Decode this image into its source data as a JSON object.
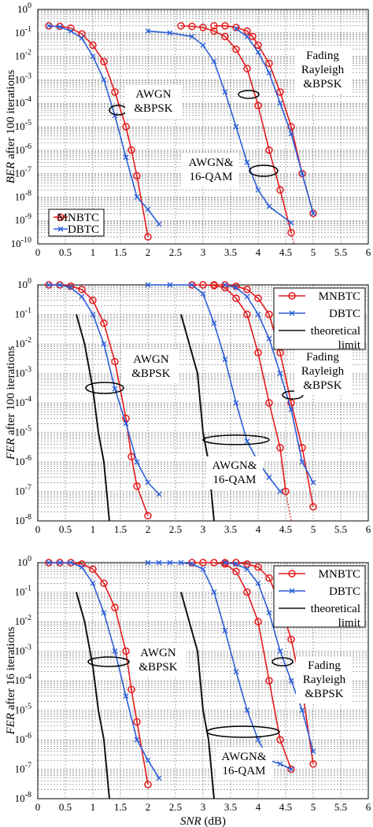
{
  "chart_data": [
    {
      "type": "line",
      "ylabel_italic": "BER",
      "ylabel_rest": " after 100 iterations",
      "xlabel_italic": "",
      "xlabel_rest": "",
      "xlim": [
        0,
        6
      ],
      "ylim_exp": [
        -10,
        0
      ],
      "yscale": "log",
      "x_ticks": [
        "0",
        "0.5",
        "1",
        "1.5",
        "2",
        "2.5",
        "3",
        "3.5",
        "4",
        "4.5",
        "5",
        "5.5",
        "6"
      ],
      "grid": true,
      "legend_position": "bottom-left",
      "series": [
        {
          "name": "MNBTC",
          "color": "#e41a1c",
          "marker": "circle",
          "x": [
            0.2,
            0.4,
            0.6,
            0.8,
            1.0,
            1.2,
            1.4,
            1.6,
            1.7,
            1.8,
            2.0
          ],
          "y": [
            0.2,
            0.19,
            0.16,
            0.09,
            0.03,
            0.006,
            0.0003,
            1e-05,
            1e-06,
            8e-08,
            2e-10
          ]
        },
        {
          "name": "DBTC",
          "color": "#2b5fd9",
          "marker": "x",
          "x": [
            0.2,
            0.4,
            0.6,
            0.8,
            1.0,
            1.2,
            1.4,
            1.6,
            1.8,
            2.0,
            2.2
          ],
          "y": [
            0.2,
            0.18,
            0.12,
            0.06,
            0.01,
            0.001,
            3e-05,
            5e-07,
            1e-08,
            3e-09,
            7e-10
          ]
        },
        {
          "name": "MNBTC",
          "color": "#e41a1c",
          "marker": "circle",
          "x": [
            2.6,
            2.8,
            3.0,
            3.2,
            3.4,
            3.6,
            3.8,
            4.0,
            4.2,
            4.4,
            4.6
          ],
          "y": [
            0.2,
            0.19,
            0.17,
            0.12,
            0.07,
            0.02,
            0.003,
            8e-05,
            1e-06,
            2e-08,
            3e-10
          ]
        },
        {
          "name": "DBTC",
          "color": "#2b5fd9",
          "marker": "x",
          "x": [
            2.0,
            2.4,
            2.8,
            3.0,
            3.2,
            3.4,
            3.6,
            3.8,
            4.0,
            4.2,
            4.6
          ],
          "y": [
            0.12,
            0.1,
            0.07,
            0.03,
            0.006,
            0.0003,
            1e-05,
            3e-07,
            2e-08,
            4e-09,
            8e-10
          ]
        },
        {
          "name": "MNBTC",
          "color": "#e41a1c",
          "marker": "circle",
          "x": [
            3.2,
            3.4,
            3.6,
            3.8,
            3.9,
            4.0,
            4.2,
            4.4,
            4.6,
            4.8,
            5.0
          ],
          "y": [
            0.2,
            0.2,
            0.17,
            0.12,
            0.07,
            0.03,
            0.005,
            0.0003,
            1e-05,
            1e-07,
            2e-09
          ]
        },
        {
          "name": "DBTC",
          "color": "#2b5fd9",
          "marker": "x",
          "x": [
            3.6,
            3.8,
            4.0,
            4.2,
            4.4,
            4.6,
            4.8,
            5.0
          ],
          "y": [
            0.15,
            0.07,
            0.015,
            0.002,
            0.0001,
            5e-06,
            1e-07,
            2e-09
          ]
        }
      ],
      "red_dotted": {
        "x": [
          4.6,
          4.65
        ],
        "y": [
          3e-10,
          1e-10
        ]
      },
      "annotations": [
        {
          "lines": [
            "AWGN",
            "&BPSK"
          ]
        },
        {
          "lines": [
            "AWGN&",
            "16-QAM"
          ]
        },
        {
          "lines": [
            "Fading",
            "Rayleigh",
            "&BPSK"
          ]
        }
      ],
      "legend": [
        "MNBTC",
        "DBTC"
      ]
    },
    {
      "type": "line",
      "ylabel_italic": "FER",
      "ylabel_rest": " after 100 iterations",
      "xlabel_italic": "",
      "xlabel_rest": "",
      "xlim": [
        0,
        6
      ],
      "ylim_exp": [
        -8,
        0
      ],
      "yscale": "log",
      "x_ticks": [
        "0",
        "0.5",
        "1",
        "1.5",
        "2",
        "2.5",
        "3",
        "3.5",
        "4",
        "4.5",
        "5",
        "5.5",
        "6"
      ],
      "grid": true,
      "legend_position": "top-right",
      "series": [
        {
          "name": "MNBTC",
          "color": "#e41a1c",
          "marker": "circle",
          "x": [
            0.2,
            0.4,
            0.6,
            0.8,
            1.0,
            1.2,
            1.4,
            1.6,
            1.7,
            1.8,
            2.0
          ],
          "y": [
            1,
            1,
            0.9,
            0.7,
            0.3,
            0.05,
            0.0025,
            3e-05,
            1.5e-06,
            1.5e-07,
            1.5e-08
          ]
        },
        {
          "name": "DBTC",
          "color": "#2b5fd9",
          "marker": "x",
          "x": [
            0.2,
            0.4,
            0.6,
            0.8,
            1.0,
            1.2,
            1.4,
            1.6,
            1.8,
            2.0,
            2.2
          ],
          "y": [
            1,
            1,
            0.8,
            0.4,
            0.1,
            0.01,
            0.0003,
            2e-05,
            1e-06,
            2e-07,
            8e-08
          ]
        },
        {
          "name": "MNBTC",
          "color": "#e41a1c",
          "marker": "circle",
          "x": [
            2.8,
            3.0,
            3.2,
            3.4,
            3.6,
            3.8,
            4.0,
            4.2,
            4.4,
            4.5
          ],
          "y": [
            1,
            1,
            0.95,
            0.8,
            0.35,
            0.1,
            0.005,
            0.0001,
            3e-06,
            1e-07
          ]
        },
        {
          "name": "DBTC",
          "color": "#2b5fd9",
          "marker": "x",
          "x": [
            2.0,
            2.4,
            2.8,
            3.0,
            3.2,
            3.4,
            3.6,
            3.8,
            4.0,
            4.2,
            4.4
          ],
          "y": [
            1,
            1,
            1,
            0.5,
            0.05,
            0.003,
            0.0001,
            5e-06,
            1e-06,
            3e-07,
            1e-07
          ]
        },
        {
          "name": "MNBTC",
          "color": "#e41a1c",
          "marker": "circle",
          "x": [
            3.2,
            3.4,
            3.6,
            3.8,
            4.0,
            4.2,
            4.4,
            4.6,
            4.8,
            5.0
          ],
          "y": [
            1,
            1,
            0.9,
            0.7,
            0.35,
            0.1,
            0.005,
            0.0001,
            3e-06,
            3e-08
          ]
        },
        {
          "name": "DBTC",
          "color": "#2b5fd9",
          "marker": "x",
          "x": [
            3.4,
            3.6,
            3.8,
            4.0,
            4.2,
            4.4,
            4.6,
            4.8,
            5.0
          ],
          "y": [
            1,
            0.8,
            0.4,
            0.1,
            0.015,
            0.001,
            6e-05,
            1e-06,
            2e-07
          ]
        },
        {
          "name": "theoretical limit",
          "color": "#111111",
          "marker": "none",
          "x": [
            0.7,
            0.85,
            1.0,
            1.1,
            1.2,
            1.3
          ],
          "y": [
            0.1,
            0.01,
            0.0003,
            1e-05,
            1e-06,
            1e-08
          ]
        },
        {
          "name": "theoretical limit",
          "color": "#111111",
          "marker": "none",
          "x": [
            2.6,
            2.75,
            2.9,
            3.0,
            3.1,
            3.2
          ],
          "y": [
            0.1,
            0.01,
            0.001,
            1e-05,
            1e-06,
            1e-08
          ]
        }
      ],
      "red_dotted": {
        "x": [
          4.5,
          4.6
        ],
        "y": [
          1e-07,
          1e-08
        ]
      },
      "annotations": [
        {
          "lines": [
            "AWGN",
            "&BPSK"
          ]
        },
        {
          "lines": [
            "AWGN&",
            "16-QAM"
          ]
        },
        {
          "lines": [
            "Fading",
            "Rayleigh",
            "&BPSK"
          ]
        }
      ],
      "legend": [
        "MNBTC",
        "DBTC",
        "theoretical",
        "limit"
      ]
    },
    {
      "type": "line",
      "ylabel_italic": "FER",
      "ylabel_rest": " after 16 iterations",
      "xlabel_italic": "SNR",
      "xlabel_rest": " (dB)",
      "xlim": [
        0,
        6
      ],
      "ylim_exp": [
        -8,
        0
      ],
      "yscale": "log",
      "x_ticks": [
        "0",
        "0.5",
        "1",
        "1.5",
        "2",
        "2.5",
        "3",
        "3.5",
        "4",
        "4.5",
        "5",
        "5.5",
        "6"
      ],
      "grid": true,
      "legend_position": "top-right",
      "series": [
        {
          "name": "MNBTC",
          "color": "#e41a1c",
          "marker": "circle",
          "x": [
            0.2,
            0.4,
            0.6,
            0.8,
            1.0,
            1.2,
            1.4,
            1.6,
            1.7,
            1.8,
            2.0
          ],
          "y": [
            1,
            1,
            1,
            0.9,
            0.6,
            0.2,
            0.03,
            0.001,
            5e-05,
            4e-06,
            3e-08
          ]
        },
        {
          "name": "DBTC",
          "color": "#2b5fd9",
          "marker": "x",
          "x": [
            0.2,
            0.4,
            0.6,
            0.8,
            1.0,
            1.2,
            1.4,
            1.6,
            1.8,
            2.0,
            2.2
          ],
          "y": [
            1,
            1,
            1,
            0.7,
            0.2,
            0.02,
            0.001,
            3e-05,
            1e-06,
            2e-07,
            5e-08
          ]
        },
        {
          "name": "MNBTC",
          "color": "#e41a1c",
          "marker": "circle",
          "x": [
            2.8,
            3.0,
            3.2,
            3.4,
            3.6,
            3.8,
            4.0,
            4.2,
            4.4,
            4.6
          ],
          "y": [
            1,
            1,
            1,
            0.9,
            0.5,
            0.1,
            0.01,
            0.0001,
            1e-06,
            1e-07
          ]
        },
        {
          "name": "DBTC",
          "color": "#2b5fd9",
          "marker": "x",
          "x": [
            2.0,
            2.2,
            2.4,
            2.6,
            2.8,
            3.0,
            3.2,
            3.4,
            3.6,
            3.8,
            4.0,
            4.2,
            4.4,
            4.6
          ],
          "y": [
            1,
            1,
            1,
            1,
            0.9,
            0.6,
            0.1,
            0.005,
            0.0002,
            1e-05,
            1e-06,
            2e-07,
            1.5e-07,
            1e-07
          ]
        },
        {
          "name": "MNBTC",
          "color": "#e41a1c",
          "marker": "circle",
          "x": [
            3.4,
            3.6,
            3.8,
            4.0,
            4.2,
            4.4,
            4.6,
            4.8,
            5.0
          ],
          "y": [
            1,
            1,
            0.9,
            0.7,
            0.3,
            0.04,
            0.0025,
            5e-05,
            1.5e-07
          ]
        },
        {
          "name": "DBTC",
          "color": "#2b5fd9",
          "marker": "x",
          "x": [
            3.4,
            3.6,
            3.8,
            4.0,
            4.2,
            4.4,
            4.6,
            4.8,
            5.0
          ],
          "y": [
            1,
            0.9,
            0.6,
            0.2,
            0.02,
            0.001,
            0.0001,
            1e-05,
            4e-07
          ]
        },
        {
          "name": "theoretical limit",
          "color": "#111111",
          "marker": "none",
          "x": [
            0.7,
            0.85,
            1.0,
            1.1,
            1.2,
            1.3
          ],
          "y": [
            0.1,
            0.01,
            0.0003,
            1e-05,
            1e-06,
            1e-08
          ]
        },
        {
          "name": "theoretical limit",
          "color": "#111111",
          "marker": "none",
          "x": [
            2.6,
            2.75,
            2.9,
            3.0,
            3.1,
            3.2
          ],
          "y": [
            0.1,
            0.01,
            0.001,
            1e-05,
            1e-06,
            1e-08
          ]
        }
      ],
      "red_dotted": {
        "x": [],
        "y": []
      },
      "annotations": [
        {
          "lines": [
            "AWGN",
            "&BPSK"
          ]
        },
        {
          "lines": [
            "AWGN&",
            "16-QAM"
          ]
        },
        {
          "lines": [
            "Fading",
            "Rayleigh",
            "&BPSK"
          ]
        }
      ],
      "legend": [
        "MNBTC",
        "DBTC",
        "theoretical",
        "limit"
      ]
    }
  ]
}
